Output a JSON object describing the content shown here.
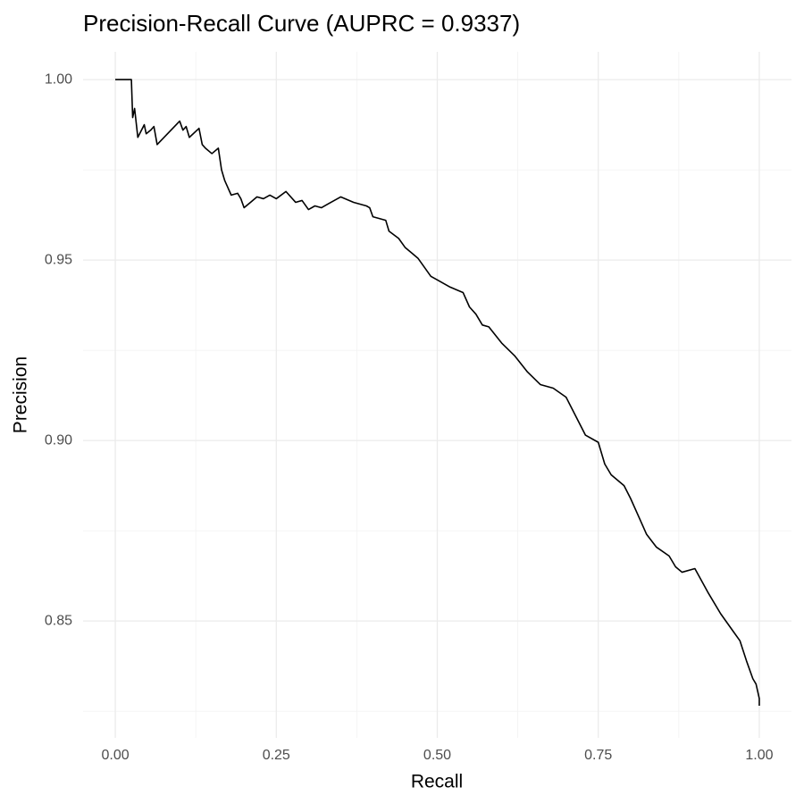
{
  "chart_data": {
    "type": "line",
    "title": "Precision-Recall Curve (AUPRC = 0.9337)",
    "x_label": "Recall",
    "y_label": "Precision",
    "x": [
      0,
      0.025,
      0.027,
      0.03,
      0.035,
      0.045,
      0.048,
      0.055,
      0.06,
      0.065,
      0.1,
      0.105,
      0.11,
      0.115,
      0.13,
      0.135,
      0.14,
      0.15,
      0.16,
      0.165,
      0.17,
      0.18,
      0.19,
      0.195,
      0.2,
      0.21,
      0.22,
      0.23,
      0.24,
      0.25,
      0.265,
      0.28,
      0.29,
      0.3,
      0.31,
      0.32,
      0.33,
      0.35,
      0.37,
      0.39,
      0.395,
      0.4,
      0.42,
      0.425,
      0.44,
      0.45,
      0.46,
      0.47,
      0.48,
      0.49,
      0.5,
      0.52,
      0.54,
      0.55,
      0.56,
      0.57,
      0.58,
      0.6,
      0.62,
      0.64,
      0.66,
      0.68,
      0.7,
      0.71,
      0.72,
      0.73,
      0.75,
      0.76,
      0.77,
      0.79,
      0.8,
      0.815,
      0.825,
      0.84,
      0.86,
      0.87,
      0.88,
      0.9,
      0.92,
      0.94,
      0.96,
      0.97,
      0.98,
      0.99,
      0.995,
      1.0,
      1.0
    ],
    "series": [
      {
        "name": "PR",
        "color": "#000000",
        "values": [
          1.0,
          1.0,
          0.9895,
          0.992,
          0.984,
          0.9875,
          0.985,
          0.986,
          0.987,
          0.982,
          0.9885,
          0.986,
          0.987,
          0.984,
          0.9865,
          0.982,
          0.981,
          0.9795,
          0.981,
          0.975,
          0.972,
          0.968,
          0.9685,
          0.967,
          0.9645,
          0.966,
          0.9675,
          0.967,
          0.968,
          0.967,
          0.969,
          0.966,
          0.9665,
          0.964,
          0.965,
          0.9645,
          0.9655,
          0.9675,
          0.966,
          0.965,
          0.9645,
          0.962,
          0.961,
          0.958,
          0.956,
          0.9535,
          0.952,
          0.9505,
          0.948,
          0.9455,
          0.9445,
          0.9425,
          0.941,
          0.937,
          0.935,
          0.932,
          0.9315,
          0.927,
          0.9235,
          0.919,
          0.9155,
          0.9145,
          0.912,
          0.9085,
          0.905,
          0.9015,
          0.8995,
          0.8935,
          0.8905,
          0.8875,
          0.884,
          0.878,
          0.874,
          0.8705,
          0.868,
          0.865,
          0.8635,
          0.8645,
          0.858,
          0.852,
          0.847,
          0.8445,
          0.839,
          0.834,
          0.8325,
          0.8285,
          0.8265
        ]
      }
    ],
    "xlim": [
      -0.05,
      1.05
    ],
    "ylim": [
      0.8176,
      1.0077
    ],
    "xticks": [
      {
        "value": 0,
        "label": "0.00"
      },
      {
        "value": 0.25,
        "label": "0.25"
      },
      {
        "value": 0.5,
        "label": "0.50"
      },
      {
        "value": 0.75,
        "label": "0.75"
      },
      {
        "value": 1,
        "label": "1.00"
      }
    ],
    "yticks": [
      {
        "value": 0.85,
        "label": "0.85"
      },
      {
        "value": 0.9,
        "label": "0.90"
      },
      {
        "value": 0.95,
        "label": "0.95"
      },
      {
        "value": 1,
        "label": "1.00"
      }
    ],
    "x_minor_ticks": [
      0.125,
      0.375,
      0.625,
      0.875
    ],
    "y_minor_ticks": [
      0.825,
      0.875,
      0.925,
      0.975
    ],
    "grid": true
  }
}
